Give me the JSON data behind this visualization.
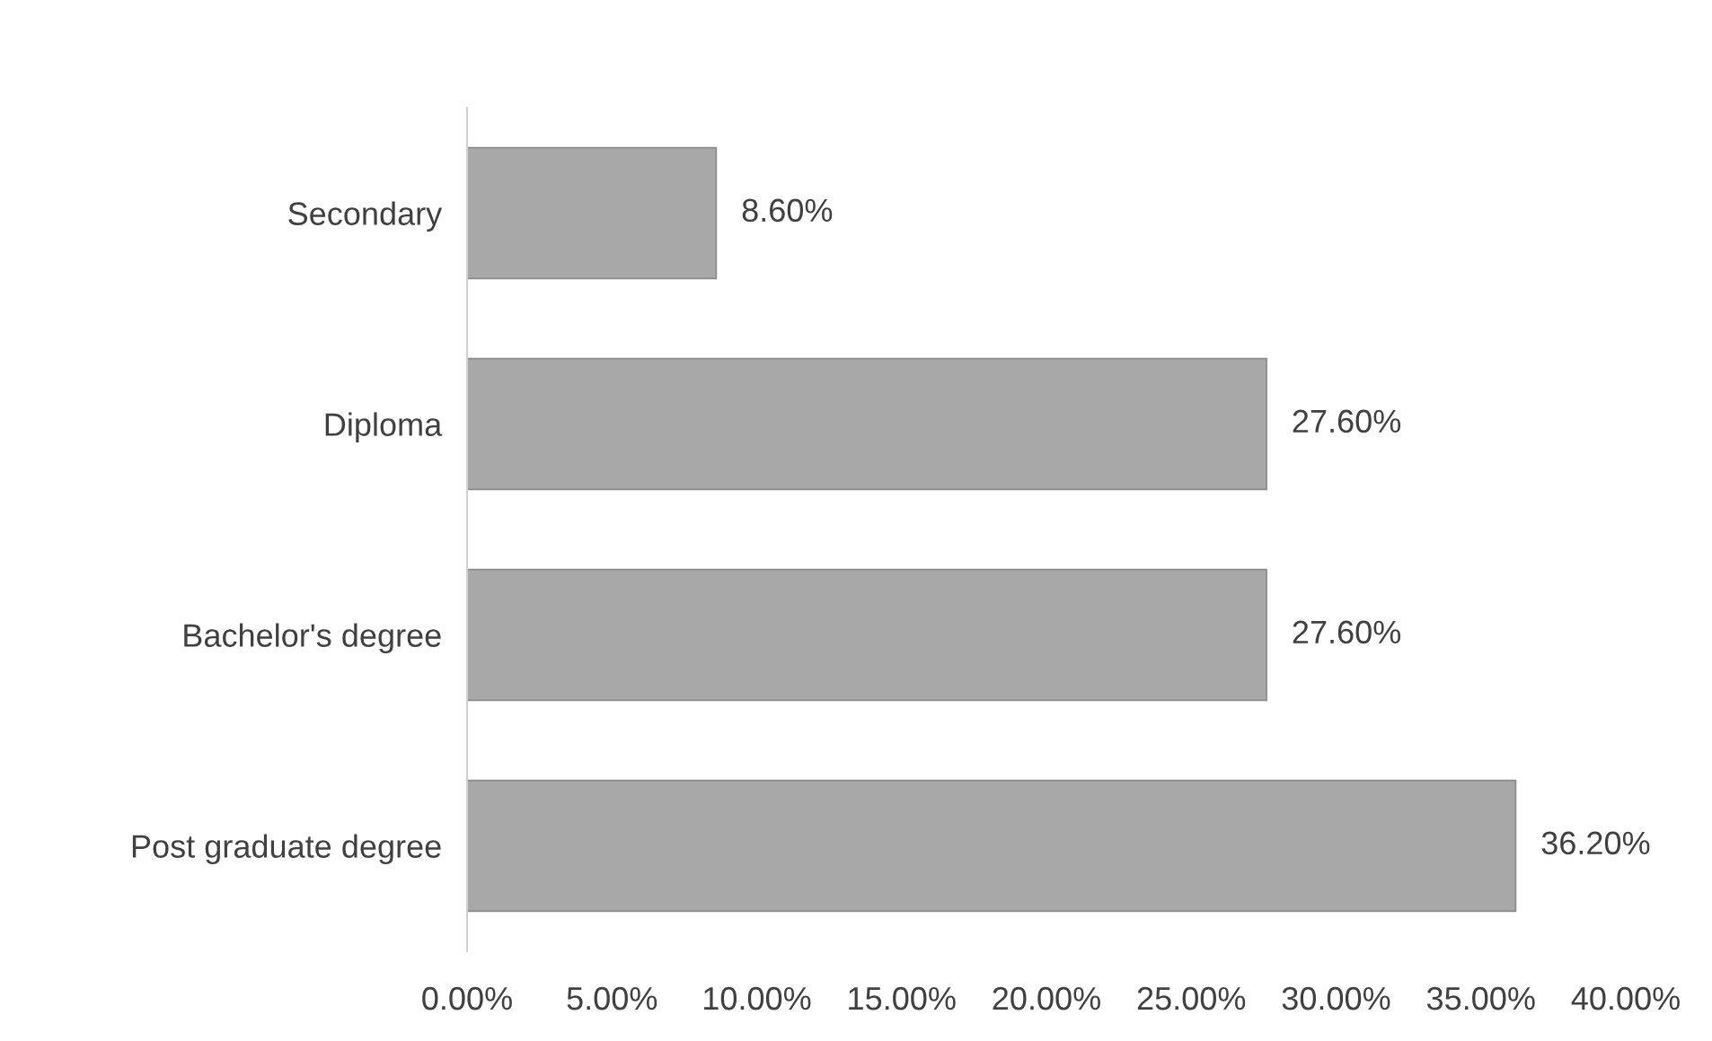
{
  "chart_data": {
    "type": "bar",
    "orientation": "horizontal",
    "categories": [
      "Secondary",
      "Diploma",
      "Bachelor's degree",
      "Post graduate degree"
    ],
    "values": [
      8.6,
      27.6,
      27.6,
      36.2
    ],
    "value_labels": [
      "8.60%",
      "27.60%",
      "27.60%",
      "36.20%"
    ],
    "color": "#a8a8a8",
    "xlim": [
      0,
      40
    ],
    "xticks": [
      {
        "value": 0,
        "label": "0.00%"
      },
      {
        "value": 5,
        "label": "5.00%"
      },
      {
        "value": 10,
        "label": "10.00%"
      },
      {
        "value": 15,
        "label": "15.00%"
      },
      {
        "value": 20,
        "label": "20.00%"
      },
      {
        "value": 25,
        "label": "25.00%"
      },
      {
        "value": 30,
        "label": "30.00%"
      },
      {
        "value": 35,
        "label": "35.00%"
      },
      {
        "value": 40,
        "label": "40.00%"
      }
    ],
    "grid": false,
    "legend": false
  }
}
